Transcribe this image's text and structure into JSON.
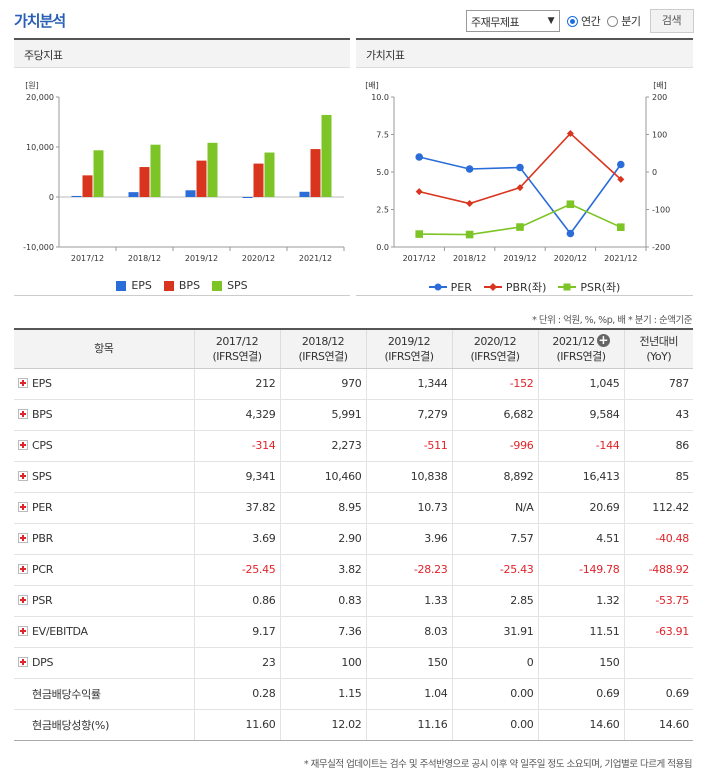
{
  "title": "가치분석",
  "controls": {
    "select_value": "주재무제표",
    "radio_year": "연간",
    "radio_quarter": "분기",
    "search_button": "검색"
  },
  "left_panel_title": "주당지표",
  "right_panel_title": "가치지표",
  "colors": {
    "EPS": "#2a6dd9",
    "BPS": "#d9351e",
    "SPS": "#7dc426",
    "PER": "#2a6dd9",
    "PBR": "#d9351e",
    "PSR": "#7dc426"
  },
  "chart_data": [
    {
      "type": "bar",
      "title": "",
      "categories": [
        "2017/12",
        "2018/12",
        "2019/12",
        "2020/12",
        "2021/12"
      ],
      "series": [
        {
          "name": "EPS",
          "values": [
            212,
            970,
            1344,
            -152,
            1045
          ]
        },
        {
          "name": "BPS",
          "values": [
            4329,
            5991,
            7279,
            6682,
            9584
          ]
        },
        {
          "name": "SPS",
          "values": [
            9341,
            10460,
            10838,
            8892,
            16413
          ]
        }
      ],
      "ylabel": "[원]",
      "ylim": [
        -10000,
        20000
      ],
      "yticks": [
        "20,000",
        "10,000",
        "0",
        "-10,000"
      ],
      "legend": "bottom",
      "grid": false
    },
    {
      "type": "line",
      "title": "",
      "categories": [
        "2017/12",
        "2018/12",
        "2019/12",
        "2020/12",
        "2021/12"
      ],
      "series": [
        {
          "name": "PER",
          "axis": "right",
          "values": [
            37.82,
            8.95,
            10.73,
            null,
            20.69
          ],
          "display": [
            6.0,
            5.2,
            5.3,
            0.9,
            5.5
          ]
        },
        {
          "name": "PBR(좌)",
          "axis": "left",
          "values": [
            3.69,
            2.9,
            3.96,
            7.57,
            4.51
          ]
        },
        {
          "name": "PSR(좌)",
          "axis": "left",
          "values": [
            0.86,
            0.83,
            1.33,
            2.85,
            1.32
          ]
        }
      ],
      "ylabel_left": "[배]",
      "ylabel_right": "[배]",
      "ylim_left": [
        0,
        10
      ],
      "ylim_right": [
        -200,
        200
      ],
      "yticks_left": [
        "10.0",
        "7.5",
        "5.0",
        "2.5",
        "0.0"
      ],
      "yticks_right": [
        "200",
        "100",
        "0",
        "-100",
        "-200"
      ],
      "legend": "bottom",
      "grid": false
    }
  ],
  "unit_note": "* 단위 : 억원, %, %p, 배    * 분기 : 순액기준",
  "table": {
    "headers": [
      {
        "l1": "항목",
        "l2": ""
      },
      {
        "l1": "2017/12",
        "l2": "(IFRS연결)"
      },
      {
        "l1": "2018/12",
        "l2": "(IFRS연결)"
      },
      {
        "l1": "2019/12",
        "l2": "(IFRS연결)"
      },
      {
        "l1": "2020/12",
        "l2": "(IFRS연결)"
      },
      {
        "l1": "2021/12",
        "l2": "(IFRS연결)"
      },
      {
        "l1": "전년대비",
        "l2": "(YoY)"
      }
    ],
    "rows": [
      {
        "name": "EPS",
        "vals": [
          "212",
          "970",
          "1,344",
          "-152",
          "1,045",
          "787"
        ]
      },
      {
        "name": "BPS",
        "vals": [
          "4,329",
          "5,991",
          "7,279",
          "6,682",
          "9,584",
          "43"
        ]
      },
      {
        "name": "CPS",
        "vals": [
          "-314",
          "2,273",
          "-511",
          "-996",
          "-144",
          "86"
        ]
      },
      {
        "name": "SPS",
        "vals": [
          "9,341",
          "10,460",
          "10,838",
          "8,892",
          "16,413",
          "85"
        ]
      },
      {
        "name": "PER",
        "vals": [
          "37.82",
          "8.95",
          "10.73",
          "N/A",
          "20.69",
          "112.42"
        ]
      },
      {
        "name": "PBR",
        "vals": [
          "3.69",
          "2.90",
          "3.96",
          "7.57",
          "4.51",
          "-40.48"
        ]
      },
      {
        "name": "PCR",
        "vals": [
          "-25.45",
          "3.82",
          "-28.23",
          "-25.43",
          "-149.78",
          "-488.92"
        ]
      },
      {
        "name": "PSR",
        "vals": [
          "0.86",
          "0.83",
          "1.33",
          "2.85",
          "1.32",
          "-53.75"
        ]
      },
      {
        "name": "EV/EBITDA",
        "vals": [
          "9.17",
          "7.36",
          "8.03",
          "31.91",
          "11.51",
          "-63.91"
        ]
      },
      {
        "name": "DPS",
        "vals": [
          "23",
          "100",
          "150",
          "0",
          "150",
          ""
        ]
      },
      {
        "name": "현금배당수익률",
        "sub": true,
        "vals": [
          "0.28",
          "1.15",
          "1.04",
          "0.00",
          "0.69",
          "0.69"
        ]
      },
      {
        "name": "현금배당성향(%)",
        "sub": true,
        "vals": [
          "11.60",
          "12.02",
          "11.16",
          "0.00",
          "14.60",
          "14.60"
        ]
      }
    ]
  },
  "footer_note": "* 재무실적 업데이트는 검수 및 주석반영으로 공시 이후 약 일주일 정도 소요되며, 기업별로 다르게 적용됩"
}
